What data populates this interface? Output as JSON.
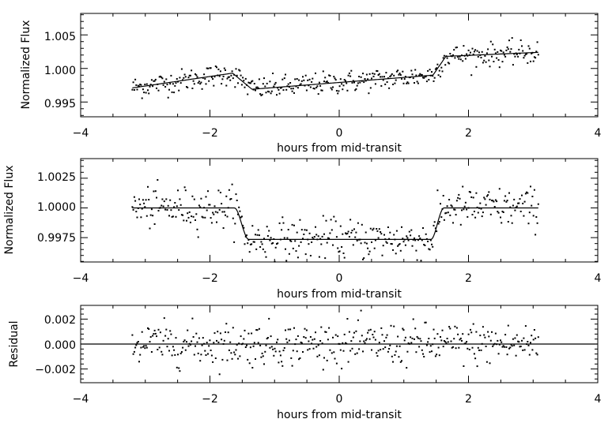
{
  "chart_data": [
    {
      "type": "scatter",
      "xlabel": "hours from mid-transit",
      "ylabel": "Normalized Flux",
      "xlim": [
        -4,
        4
      ],
      "ylim": [
        0.9928,
        1.0082
      ],
      "xticks": [
        -4,
        -2,
        0,
        2,
        4
      ],
      "xtick_labels": [
        "−4",
        "−2",
        "0",
        "2",
        "4"
      ],
      "yticks": [
        0.995,
        1.0,
        1.005
      ],
      "ytick_labels": [
        "0.995",
        "1.000",
        "1.005"
      ],
      "x_range_data": [
        -3.2,
        3.08
      ],
      "point_count": 420,
      "scatter_sigma": 0.00085,
      "model_curve": {
        "description": "sloped baseline with transit-like steps",
        "knots_x": [
          -3.2,
          -1.65,
          -1.35,
          1.45,
          1.65,
          3.08
        ],
        "knots_y": [
          0.9971,
          0.9993,
          0.9969,
          0.999,
          1.0018,
          1.0024
        ]
      }
    },
    {
      "type": "scatter",
      "xlabel": "hours from mid-transit",
      "ylabel": "Normalized Flux",
      "xlim": [
        -4,
        4
      ],
      "ylim": [
        0.99545,
        1.00415
      ],
      "xticks": [
        -4,
        -2,
        0,
        2,
        4
      ],
      "xtick_labels": [
        "−4",
        "−2",
        "0",
        "2",
        "4"
      ],
      "yticks": [
        0.9975,
        1.0,
        1.0025
      ],
      "ytick_labels": [
        "0.9975",
        "1.0000",
        "1.0025"
      ],
      "x_range_data": [
        -3.2,
        3.08
      ],
      "point_count": 420,
      "scatter_sigma": 0.00085,
      "model_curve": {
        "description": "box-shaped transit",
        "out_of_transit": 1.0,
        "in_transit": 0.99735,
        "ingress": [
          -1.62,
          -1.4
        ],
        "egress": [
          1.42,
          1.62
        ]
      }
    },
    {
      "type": "scatter",
      "xlabel": "hours from mid-transit",
      "ylabel": "Residual",
      "xlim": [
        -4,
        4
      ],
      "ylim": [
        -0.0031,
        0.0031
      ],
      "xticks": [
        -4,
        -2,
        0,
        2,
        4
      ],
      "xtick_labels": [
        "−4",
        "−2",
        "0",
        "2",
        "4"
      ],
      "yticks": [
        -0.002,
        0.0,
        0.002
      ],
      "ytick_labels": [
        "−0.002",
        "0.000",
        "0.002"
      ],
      "x_range_data": [
        -3.2,
        3.08
      ],
      "point_count": 420,
      "scatter_sigma": 0.00085,
      "model_curve": {
        "description": "zero line",
        "value": 0.0
      }
    }
  ]
}
